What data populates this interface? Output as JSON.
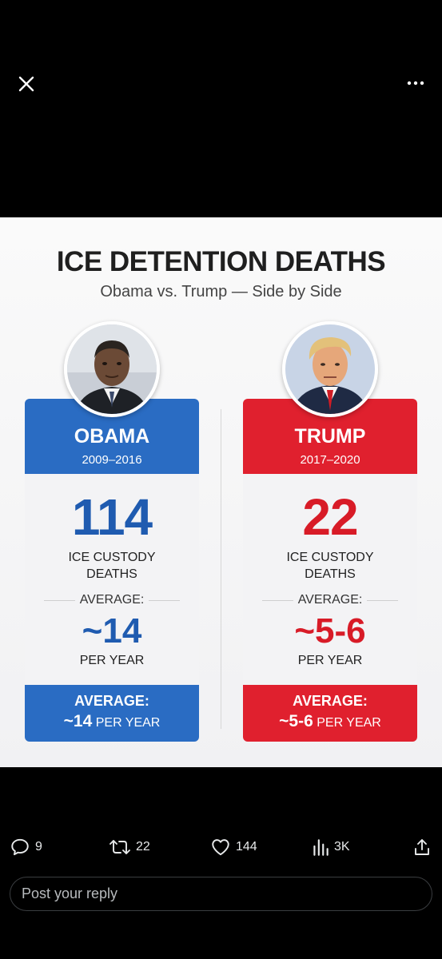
{
  "infographic": {
    "title": "ICE DETENTION DEATHS",
    "subtitle": "Obama vs. Trump — Side by Side",
    "left": {
      "name": "OBAMA",
      "years": "2009–2016",
      "deaths": "114",
      "deaths_label_1": "ICE CUSTODY",
      "deaths_label_2": "DEATHS",
      "average_label": "AVERAGE:",
      "average_value": "~14",
      "per_year": "PER YEAR",
      "footer_label": "AVERAGE:",
      "footer_value": "~14",
      "footer_unit": "PER YEAR",
      "color": "#2a6cc3"
    },
    "right": {
      "name": "TRUMP",
      "years": "2017–2020",
      "deaths": "22",
      "deaths_label_1": "ICE CUSTODY",
      "deaths_label_2": "DEATHS",
      "average_label": "AVERAGE:",
      "average_value": "~5-6",
      "per_year": "PER YEAR",
      "footer_label": "AVERAGE:",
      "footer_value": "~5-6",
      "footer_unit": "PER YEAR",
      "color": "#e0202e"
    }
  },
  "actions": {
    "replies": "9",
    "reposts": "22",
    "likes": "144",
    "views": "3K"
  },
  "reply": {
    "placeholder": "Post your reply"
  },
  "icons": [
    "close-icon",
    "more-icon",
    "reply-icon",
    "repost-icon",
    "like-icon",
    "views-icon",
    "share-icon"
  ]
}
